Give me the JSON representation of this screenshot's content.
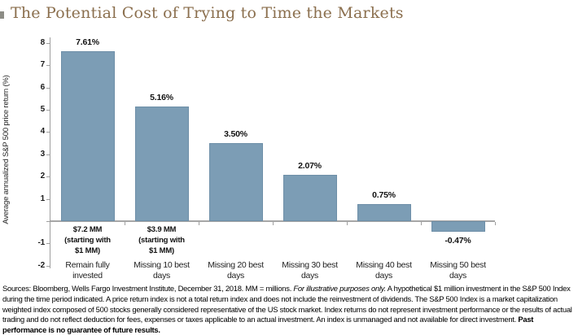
{
  "page": {
    "title": "The Potential Cost of Trying to Time the Markets"
  },
  "chart_data": {
    "type": "bar",
    "title": "The Potential Cost of Trying to Time the Markets",
    "xlabel": "",
    "ylabel": "Average annualized S&P 500 price return (%)",
    "categories": [
      "Remain fully invested",
      "Missing 10 best days",
      "Missing 20 best days",
      "Missing 30 best days",
      "Missing 40 best days",
      "Missing 50 best days"
    ],
    "category_label_lines": [
      [
        "Remain fully",
        "invested"
      ],
      [
        "Missing 10 best",
        "days"
      ],
      [
        "Missing 20 best",
        "days"
      ],
      [
        "Missing 30 best",
        "days"
      ],
      [
        "Missing 40 best",
        "days"
      ],
      [
        "Missing 50 best",
        "days"
      ]
    ],
    "values": [
      7.61,
      5.16,
      3.5,
      2.07,
      0.75,
      -0.47
    ],
    "value_labels": [
      "7.61%",
      "5.16%",
      "3.50%",
      "2.07%",
      "0.75%",
      "-0.47%"
    ],
    "bar_annotations": [
      [
        "$7.2 MM",
        "(starting with",
        "$1 MM)"
      ],
      [
        "$3.9 MM",
        "(starting with",
        "$1 MM)"
      ],
      null,
      null,
      null,
      null
    ],
    "y_ticks": [
      {
        "value": 8,
        "label": "8"
      },
      {
        "value": 7,
        "label": "7"
      },
      {
        "value": 6,
        "label": "6"
      },
      {
        "value": 5,
        "label": "5"
      },
      {
        "value": 4,
        "label": "4"
      },
      {
        "value": 3,
        "label": "3"
      },
      {
        "value": 2,
        "label": "2"
      },
      {
        "value": 1,
        "label": "1"
      },
      {
        "value": 0,
        "label": ""
      },
      {
        "value": -1,
        "label": "-1"
      },
      {
        "value": -2,
        "label": "-2"
      }
    ],
    "ylim": [
      -2,
      8.3
    ],
    "grid": false,
    "legend": false,
    "bar_color": "#7C9DB5",
    "bar_border_color": "#6E8FA8"
  },
  "colors": {
    "title_text": "#8B6F4E",
    "axis_line": "#9e9e9e",
    "baseline": "#a6a6a6",
    "bar_fill": "#7C9DB5"
  },
  "footer": {
    "segments": [
      {
        "style": "normal",
        "text": "Sources: Bloomberg, Wells Fargo Investment Institute, December 31, 2018. MM = millions. "
      },
      {
        "style": "italic",
        "text": "For illustrative purposes only."
      },
      {
        "style": "normal",
        "text": " A hypothetical $1 million investment in the S&P 500 Index during the time period indicated. A price return index is not a total return index and does not include the reinvestment of dividends. The S&P 500 Index is a market capitalization weighted index composed of 500 stocks generally considered representative of the US stock market. Index returns do not represent investment performance or the results of actual trading and do not reflect deduction for fees, expenses or taxes applicable to an actual investment. An index is unmanaged and not available for direct investment. "
      },
      {
        "style": "bold",
        "text": "Past performance is no guarantee of future results."
      }
    ]
  }
}
